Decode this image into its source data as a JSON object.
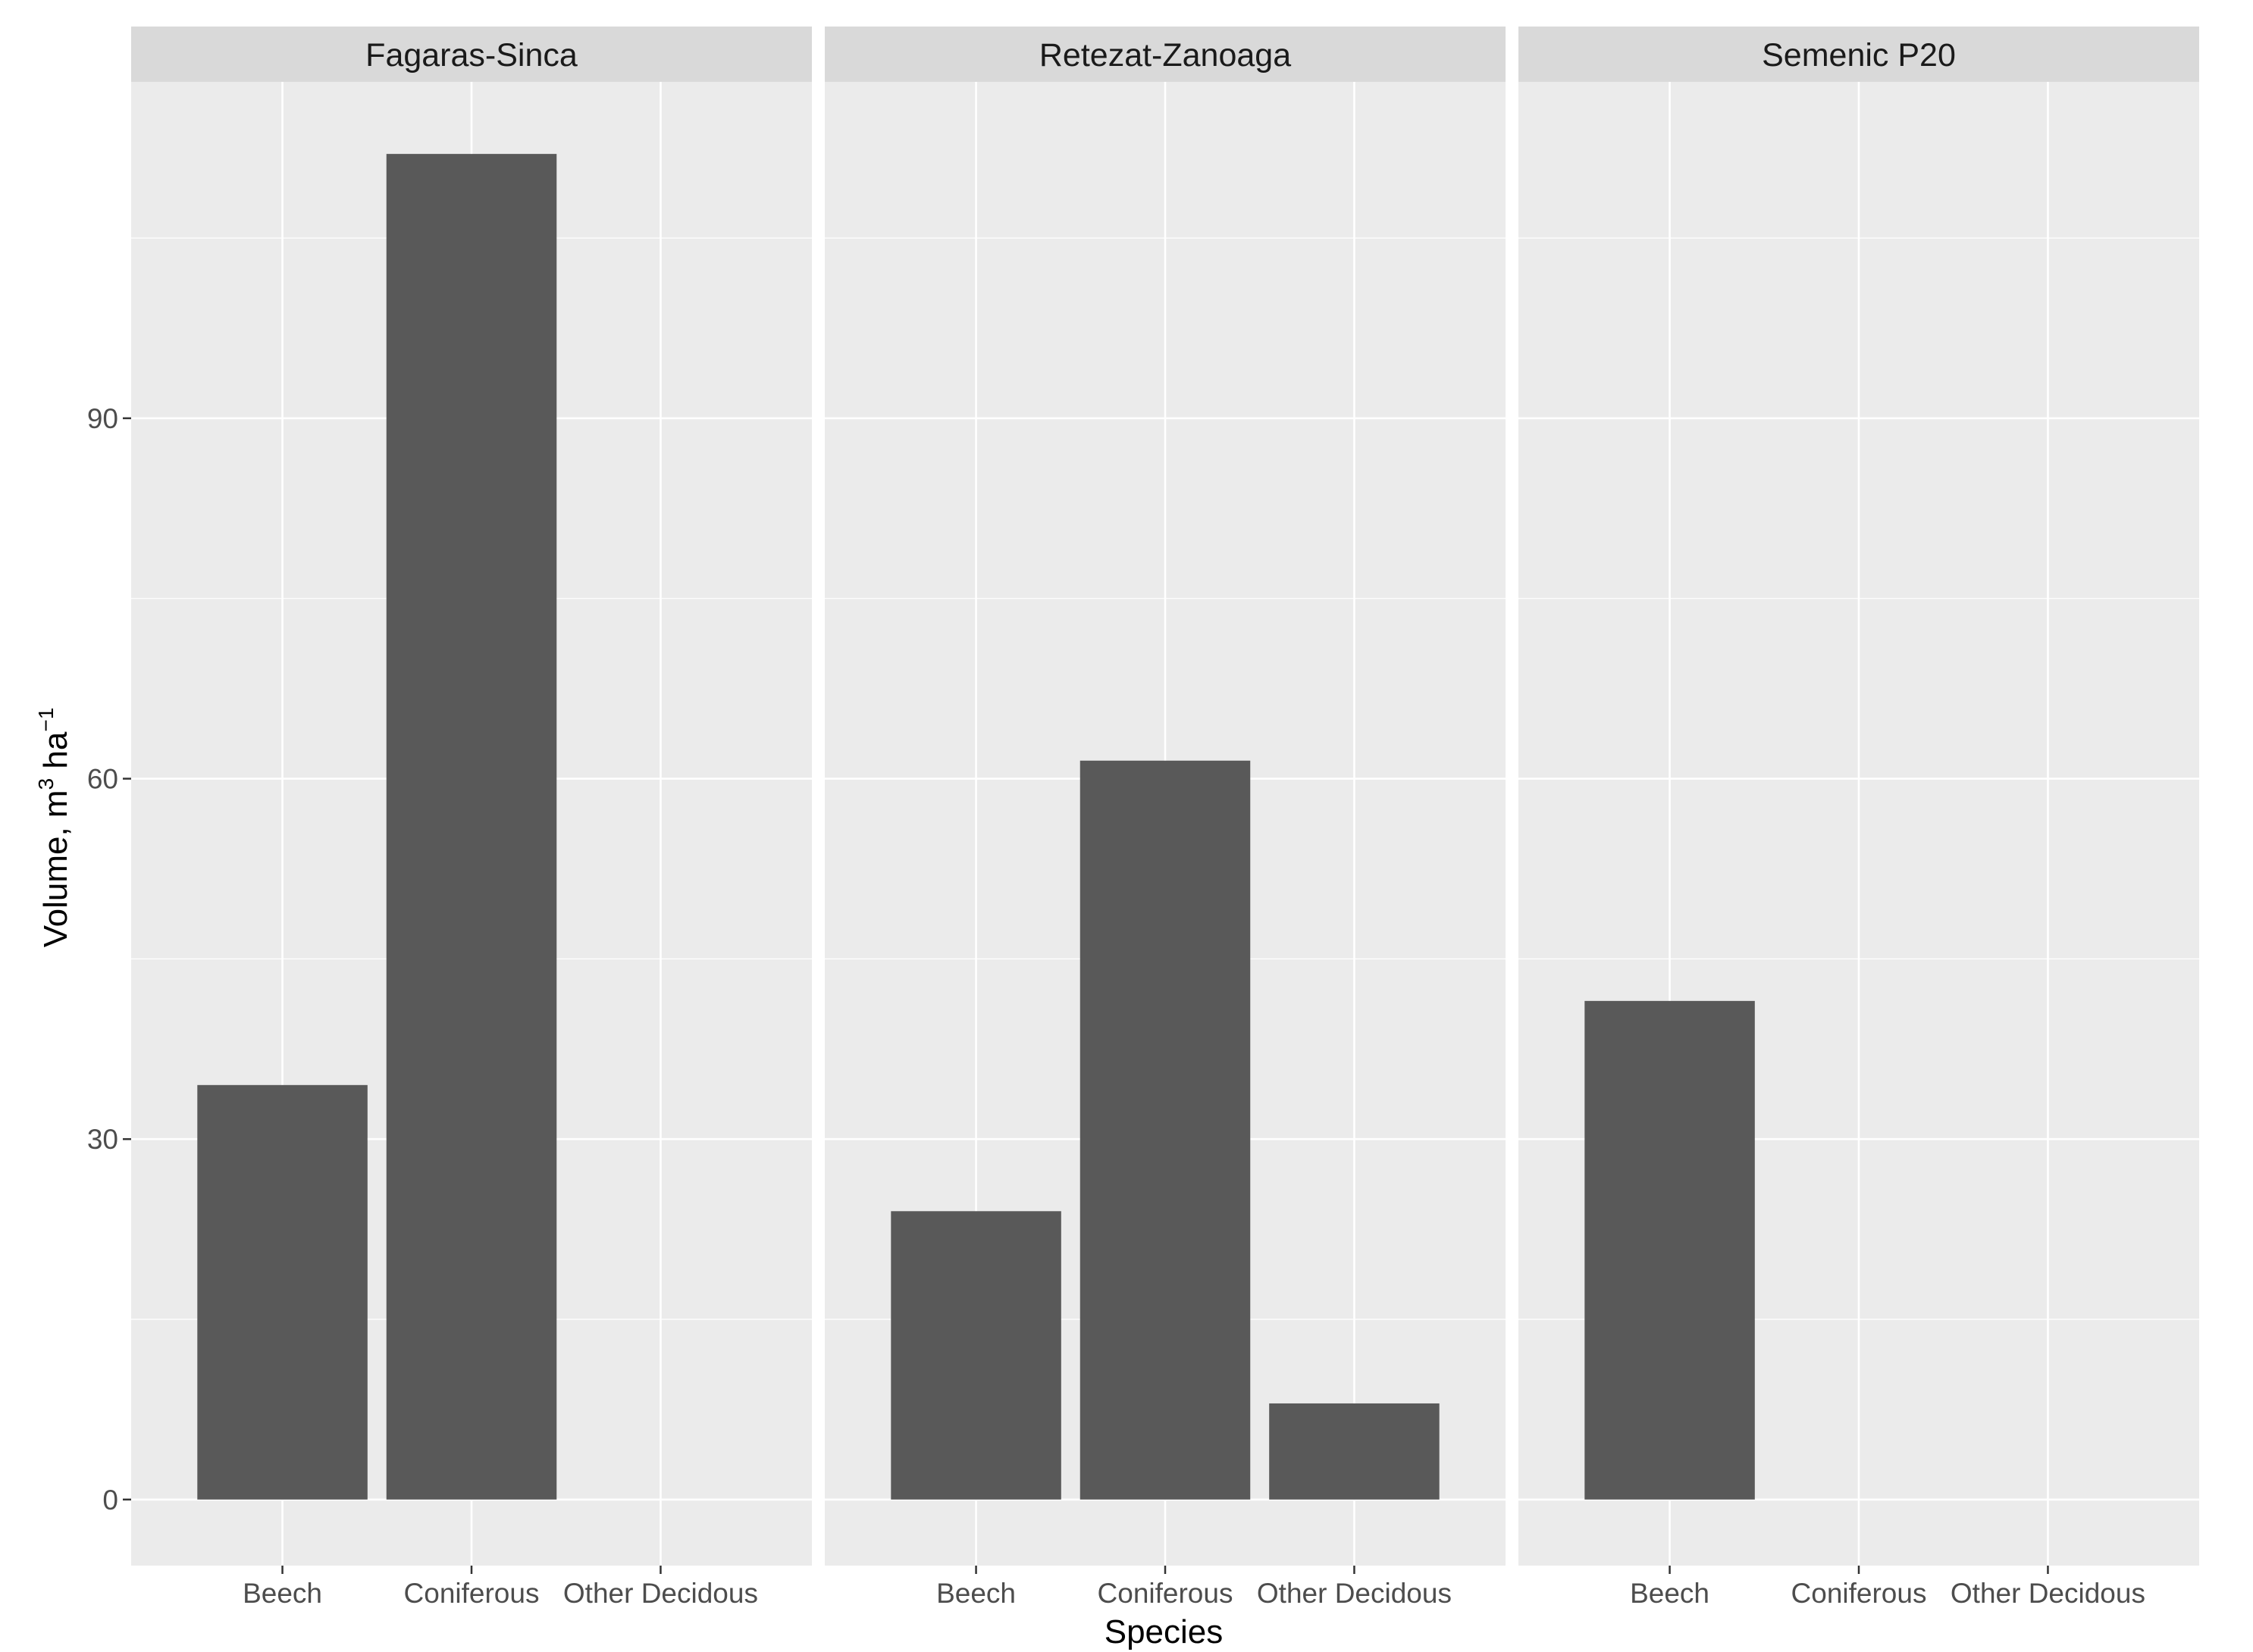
{
  "chart_data": {
    "type": "bar",
    "facet_by": "site",
    "xlabel": "Species",
    "ylabel": {
      "base": "Volume, m",
      "sup1": "3",
      "mid": " ha",
      "sup2": "−1"
    },
    "categories": [
      "Beech",
      "Coniferous",
      "Other Decidous"
    ],
    "ylim": [
      -5.5,
      118
    ],
    "yticks": [
      0,
      30,
      60,
      90
    ],
    "grid": true,
    "legend": "none",
    "colors": {
      "bar": "#595959",
      "panel": "#ebebeb",
      "strip": "#d9d9d9",
      "grid": "#ffffff",
      "tick": "#333333"
    },
    "facets": [
      {
        "name": "Fagaras-Sinca",
        "values": [
          34.5,
          112,
          0
        ]
      },
      {
        "name": "Retezat-Zanoaga",
        "values": [
          24,
          61.5,
          8
        ]
      },
      {
        "name": "Semenic P20",
        "values": [
          41.5,
          0,
          0
        ]
      }
    ]
  }
}
